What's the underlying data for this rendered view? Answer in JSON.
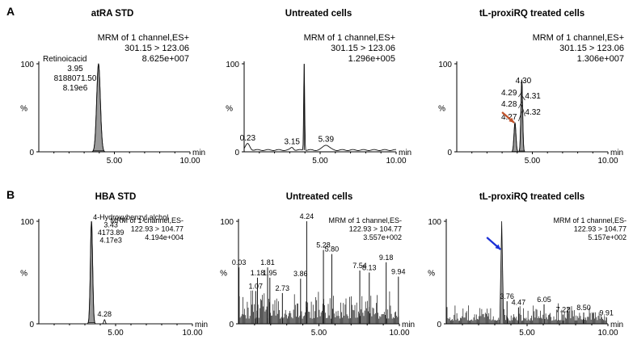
{
  "panel_labels": [
    "A",
    "B"
  ],
  "axis_unit": "min",
  "chart_data": [
    {
      "type": "line",
      "panel": "A",
      "title": "atRA STD",
      "info": [
        "MRM of 1 channel,ES+",
        "301.15 > 123.06",
        "8.625e+007"
      ],
      "xlabel": "min",
      "ylabel": "%",
      "xlim": [
        0,
        10
      ],
      "ylim": [
        0,
        100
      ],
      "x_ticks": [
        "5.00",
        "10.00"
      ],
      "y_ticks": [
        "0",
        "100"
      ],
      "peaks": [
        {
          "x": 3.95,
          "y": 100,
          "width": 0.3,
          "filled": true
        }
      ],
      "annotations": [
        {
          "x": 3.95,
          "lines": [
            "Retinoicacid",
            "3.95",
            "8188071.50",
            "8.19e6"
          ]
        }
      ]
    },
    {
      "type": "line",
      "panel": "A",
      "title": "Untreated cells",
      "info": [
        "MRM of 1 channel,ES+",
        "301.15 > 123.06",
        "1.296e+005"
      ],
      "xlabel": "min",
      "ylabel": "%",
      "xlim": [
        0,
        10
      ],
      "ylim": [
        0,
        100
      ],
      "x_ticks": [
        "5.00",
        "10.00"
      ],
      "y_ticks": [
        "0",
        "100"
      ],
      "baseline": 2,
      "peaks": [
        {
          "x": 0.23,
          "y": 9,
          "width": 0.35
        },
        {
          "x": 3.15,
          "y": 5,
          "width": 0.25
        },
        {
          "x": 3.95,
          "y": 100,
          "width": 0.08
        },
        {
          "x": 5.39,
          "y": 8,
          "width": 0.5
        }
      ],
      "labels": [
        {
          "x": 0.23,
          "text": "0.23"
        },
        {
          "x": 3.15,
          "text": "3.15"
        },
        {
          "x": 5.39,
          "text": "5.39"
        }
      ]
    },
    {
      "type": "line",
      "panel": "A",
      "title": "tL-proxiRQ treated cells",
      "info": [
        "MRM of 1 channel,ES+",
        "301.15 > 123.06",
        "1.306e+007"
      ],
      "xlabel": "min",
      "ylabel": "%",
      "xlim": [
        0,
        10
      ],
      "ylim": [
        0,
        100
      ],
      "x_ticks": [
        "5.00",
        "10.00"
      ],
      "y_ticks": [
        "0",
        "100"
      ],
      "peaks": [
        {
          "x": 3.85,
          "y": 33,
          "width": 0.16,
          "filled": true
        },
        {
          "x": 4.3,
          "y": 82,
          "width": 0.14,
          "filled": true
        }
      ],
      "stack_labels": [
        "4.30",
        "4.29",
        "4.31",
        "4.28",
        "4.27",
        "4.32"
      ],
      "arrow_color": "#c0522a"
    },
    {
      "type": "line",
      "panel": "B",
      "title": "HBA STD",
      "info": [
        "MRM of 1 channel,ES-",
        "122.93 > 104.77",
        "4.194e+004"
      ],
      "xlabel": "min",
      "ylabel": "%",
      "xlim": [
        0,
        10
      ],
      "ylim": [
        0,
        100
      ],
      "x_ticks": [
        "5.00",
        "10.00"
      ],
      "y_ticks": [
        "0",
        "100"
      ],
      "peaks": [
        {
          "x": 3.43,
          "y": 100,
          "width": 0.18,
          "filled": true
        },
        {
          "x": 4.28,
          "y": 4,
          "width": 0.12
        }
      ],
      "annotations": [
        {
          "x": 3.43,
          "lines": [
            "4-Hydroxybenzyl alchol",
            "3.43",
            "4173.89",
            "4.17e3"
          ]
        }
      ],
      "labels": [
        {
          "x": 4.28,
          "text": "4.28"
        }
      ]
    },
    {
      "type": "line",
      "panel": "B",
      "title": "Untreated cells",
      "info": [
        "MRM of 1 channel,ES-",
        "122.93 > 104.77",
        "3.557e+002"
      ],
      "xlabel": "min",
      "ylabel": "%",
      "xlim": [
        0,
        10
      ],
      "ylim": [
        0,
        100
      ],
      "x_ticks": [
        "5.00",
        "10.00"
      ],
      "y_ticks": [
        "0",
        "100"
      ],
      "noise_level": 20,
      "peaks": [
        {
          "x": 0.03,
          "y": 55
        },
        {
          "x": 1.18,
          "y": 45
        },
        {
          "x": 1.07,
          "y": 32
        },
        {
          "x": 1.81,
          "y": 55
        },
        {
          "x": 1.95,
          "y": 45
        },
        {
          "x": 2.73,
          "y": 30
        },
        {
          "x": 3.86,
          "y": 44
        },
        {
          "x": 4.24,
          "y": 100
        },
        {
          "x": 5.28,
          "y": 72
        },
        {
          "x": 5.8,
          "y": 68
        },
        {
          "x": 7.54,
          "y": 52
        },
        {
          "x": 8.13,
          "y": 50
        },
        {
          "x": 9.18,
          "y": 60
        },
        {
          "x": 9.94,
          "y": 46
        }
      ],
      "labels": [
        {
          "x": 0.03,
          "text": "0.03"
        },
        {
          "x": 1.18,
          "text": "1.18"
        },
        {
          "x": 1.07,
          "text": "1.07"
        },
        {
          "x": 1.81,
          "text": "1.81"
        },
        {
          "x": 1.95,
          "text": "1.95"
        },
        {
          "x": 2.73,
          "text": "2.73"
        },
        {
          "x": 3.86,
          "text": "3.86"
        },
        {
          "x": 4.24,
          "text": "4.24"
        },
        {
          "x": 5.28,
          "text": "5.28"
        },
        {
          "x": 5.8,
          "text": "5.80"
        },
        {
          "x": 7.54,
          "text": "7.54"
        },
        {
          "x": 8.13,
          "text": "8.13"
        },
        {
          "x": 9.18,
          "text": "9.18"
        },
        {
          "x": 9.94,
          "text": "9.94"
        }
      ]
    },
    {
      "type": "line",
      "panel": "B",
      "title": "tL-proxiRQ treated cells",
      "info": [
        "MRM of 1 channel,ES-",
        "122.93 > 104.77",
        "5.157e+002"
      ],
      "xlabel": "min",
      "ylabel": "%",
      "xlim": [
        0,
        10
      ],
      "ylim": [
        0,
        100
      ],
      "x_ticks": [
        "5.00",
        "10.00"
      ],
      "y_ticks": [
        "0",
        "100"
      ],
      "noise_level": 12,
      "peaks": [
        {
          "x": 3.43,
          "y": 100,
          "filled": true
        },
        {
          "x": 3.76,
          "y": 22
        },
        {
          "x": 4.47,
          "y": 16
        },
        {
          "x": 6.05,
          "y": 19
        },
        {
          "x": 7.22,
          "y": 9
        },
        {
          "x": 8.5,
          "y": 11
        },
        {
          "x": 9.91,
          "y": 6
        }
      ],
      "labels": [
        {
          "x": 3.76,
          "text": "3.76"
        },
        {
          "x": 4.47,
          "text": "4.47"
        },
        {
          "x": 6.05,
          "text": "6.05"
        },
        {
          "x": 7.22,
          "text": "7.22"
        },
        {
          "x": 8.5,
          "text": "8.50"
        },
        {
          "x": 9.91,
          "text": "9.91"
        }
      ],
      "arrow_color": "#1a2fd6"
    }
  ]
}
